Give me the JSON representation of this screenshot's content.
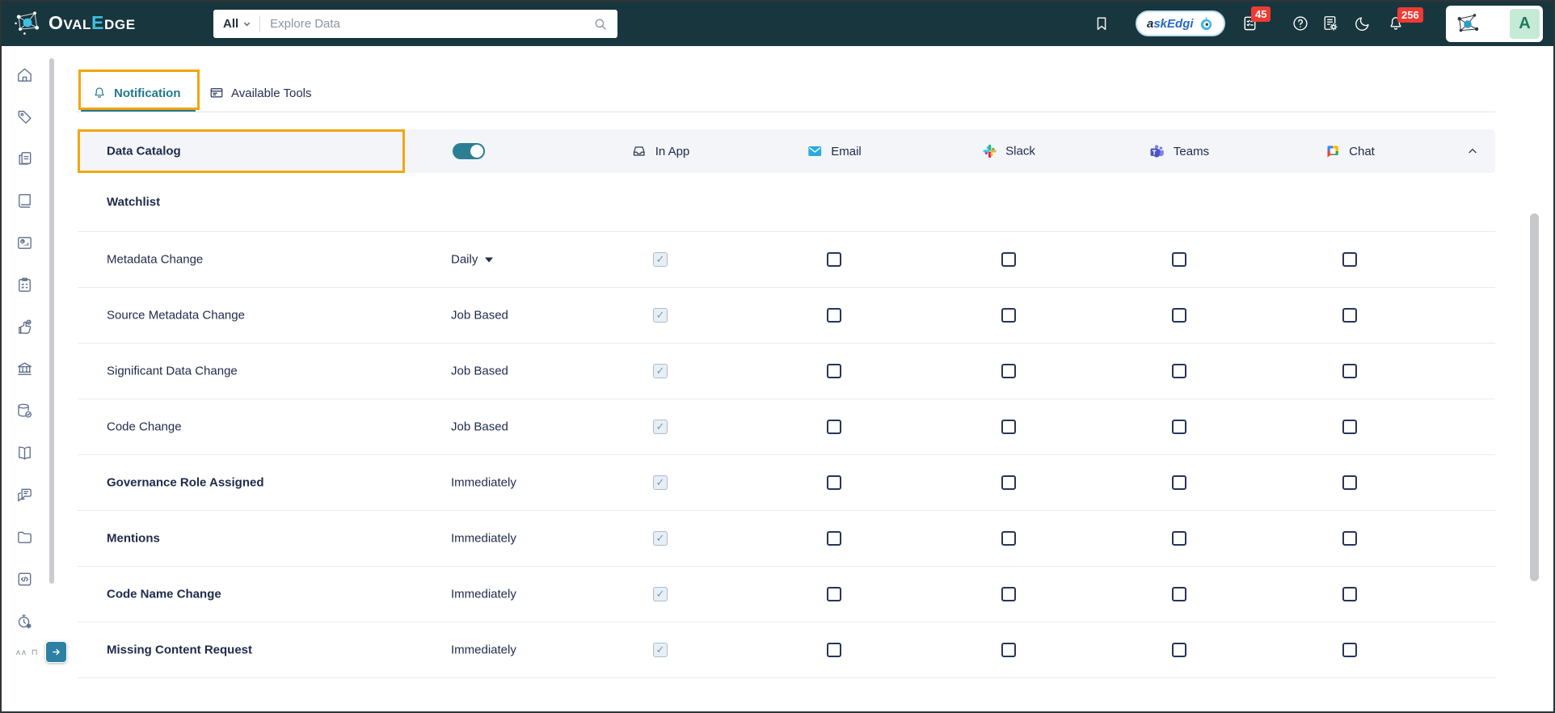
{
  "topbar": {
    "brand": {
      "letter_o": "O",
      "letters_val": "VAL",
      "letter_e": "E",
      "letters_dge": "DGE"
    },
    "search_scope": "All",
    "search_placeholder": "Explore Data",
    "askedgi": {
      "prefix": "a",
      "rest": "skEdgi"
    },
    "task_badge": "45",
    "notification_badge": "256",
    "avatar_initial": "A"
  },
  "sidebar": {
    "icons": [
      "home",
      "tags",
      "templates",
      "catalog",
      "reports",
      "projects",
      "approvals",
      "governance",
      "data-quality",
      "glossary",
      "discussions",
      "files",
      "query-sheet",
      "jobs"
    ],
    "clipped_item_glyphs": "ʌʌ ⊓"
  },
  "tabs": {
    "notification": "Notification",
    "available_tools": "Available Tools"
  },
  "panel": {
    "title": "Data Catalog",
    "toggle_state": "on",
    "columns": [
      "In App",
      "Email",
      "Slack",
      "Teams",
      "Chat"
    ],
    "section_header": "Watchlist",
    "channel_keys": [
      "in_app",
      "email",
      "slack",
      "teams",
      "chat"
    ],
    "rows": [
      {
        "label": "Metadata Change",
        "frequency": "Daily",
        "has_dropdown": true,
        "bold": false,
        "in_app": "checked",
        "email": "unchecked",
        "slack": "unchecked",
        "teams": "unchecked",
        "chat": "unchecked"
      },
      {
        "label": "Source Metadata Change",
        "frequency": "Job Based",
        "has_dropdown": false,
        "bold": false,
        "in_app": "checked",
        "email": "unchecked",
        "slack": "unchecked",
        "teams": "unchecked",
        "chat": "unchecked"
      },
      {
        "label": "Significant Data Change",
        "frequency": "Job Based",
        "has_dropdown": false,
        "bold": false,
        "in_app": "checked",
        "email": "unchecked",
        "slack": "unchecked",
        "teams": "unchecked",
        "chat": "unchecked"
      },
      {
        "label": "Code Change",
        "frequency": "Job Based",
        "has_dropdown": false,
        "bold": false,
        "in_app": "checked",
        "email": "unchecked",
        "slack": "unchecked",
        "teams": "unchecked",
        "chat": "unchecked"
      },
      {
        "label": "Governance Role Assigned",
        "frequency": "Immediately",
        "has_dropdown": false,
        "bold": true,
        "in_app": "checked",
        "email": "unchecked",
        "slack": "unchecked",
        "teams": "unchecked",
        "chat": "unchecked"
      },
      {
        "label": "Mentions",
        "frequency": "Immediately",
        "has_dropdown": false,
        "bold": true,
        "in_app": "checked",
        "email": "unchecked",
        "slack": "unchecked",
        "teams": "unchecked",
        "chat": "unchecked"
      },
      {
        "label": "Code Name Change",
        "frequency": "Immediately",
        "has_dropdown": false,
        "bold": true,
        "in_app": "checked",
        "email": "unchecked",
        "slack": "unchecked",
        "teams": "unchecked",
        "chat": "unchecked"
      },
      {
        "label": "Missing Content Request",
        "frequency": "Immediately",
        "has_dropdown": false,
        "bold": true,
        "in_app": "checked",
        "email": "unchecked",
        "slack": "unchecked",
        "teams": "unchecked",
        "chat": "unchecked"
      }
    ]
  },
  "colors": {
    "topbar_bg": "#18363E",
    "accent_teal": "#21798D",
    "toggle_teal": "#2C7E93",
    "annotation_orange": "#F2A60E",
    "badge_red": "#EE3B33",
    "text_navy": "#1F2A4B",
    "icon_slate": "#5E6D8C",
    "email_blue": "#29ABE2",
    "askedgi_blue": "#2668C8",
    "avatar_bg": "#C5EAD6",
    "avatar_text": "#20795B"
  }
}
